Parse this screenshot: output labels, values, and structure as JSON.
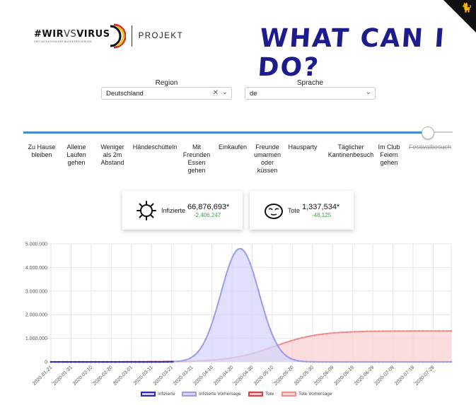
{
  "corner": {
    "icon": "github-octocat-icon",
    "glyph": "🐈"
  },
  "logo": {
    "main_prefix": "#WIR",
    "main_vs": "VS",
    "main_suffix": "VIRUS",
    "sub": "DER HACKATHON DER BUNDESREGIERUNG",
    "projekt": "PROJEKT"
  },
  "title": "WHAT CAN I DO?",
  "region": {
    "label": "Region",
    "value": "Deutschland"
  },
  "sprache": {
    "label": "Sprache",
    "value": "de"
  },
  "slider": {
    "value_fraction": 0.94
  },
  "steps": [
    {
      "label": "Zu Hause bleiben"
    },
    {
      "label": "Alleine Laufen gehen"
    },
    {
      "label": "Weniger als 2m Abstand"
    },
    {
      "label": "Händeschütteln"
    },
    {
      "label": "Mit Freunden Essen gehen"
    },
    {
      "label": "Einkaufen"
    },
    {
      "label": "Freunde umarmen oder küssen"
    },
    {
      "label": "Hausparty"
    },
    {
      "label": "Täglicher Kantinenbesuch"
    },
    {
      "label": "Im Club Feiern gehen"
    },
    {
      "label": "Festivalbesuch"
    }
  ],
  "stats": {
    "infected": {
      "label": "Infizierte",
      "value": "66,876,693*",
      "delta": "-2,406,247"
    },
    "deaths": {
      "label": "Tote",
      "value": "1,337,534*",
      "delta": "-48,125"
    }
  },
  "chart_data": {
    "type": "area",
    "ylim": [
      0,
      5000000
    ],
    "yticks": [
      "0",
      "1.000.000",
      "2.000.000",
      "3.000.000",
      "4.000.000",
      "5.000.000"
    ],
    "xticks": [
      "2020-01-21",
      "2020-01-31",
      "2020-02-10",
      "2020-02-20",
      "2020-03-01",
      "2020-03-11",
      "2020-03-21",
      "2020-03-31",
      "2020-04-10",
      "2020-04-20",
      "2020-04-30",
      "2020-05-10",
      "2020-05-20",
      "2020-05-30",
      "2020-06-09",
      "2020-06-19",
      "2020-06-29",
      "2020-07-09",
      "2020-07-19",
      "2020-07-29"
    ],
    "grid": true,
    "x_start": "2020-01-21",
    "x_end": "2020-08-07",
    "peak_date": "2020-04-24",
    "peak_infected": 4800000,
    "deaths_plateau": 1310000,
    "series": [
      {
        "name": "Infizierte",
        "color": "#2a2abf",
        "fill": "#c9c9f7",
        "x_range": [
          "2020-01-21",
          "2020-03-22"
        ]
      },
      {
        "name": "Infizierte Vorhersage",
        "color": "#9d9de8",
        "fill": "#d6d6fb",
        "x_range": [
          "2020-03-22",
          "2020-08-07"
        ]
      },
      {
        "name": "Tote",
        "color": "#e04040",
        "fill": "#f6c7c7",
        "x_range": [
          "2020-01-21",
          "2020-03-22"
        ]
      },
      {
        "name": "Tote Vorhersage",
        "color": "#f08f8f",
        "fill": "#f9d2d2",
        "x_range": [
          "2020-03-22",
          "2020-08-07"
        ]
      }
    ]
  }
}
